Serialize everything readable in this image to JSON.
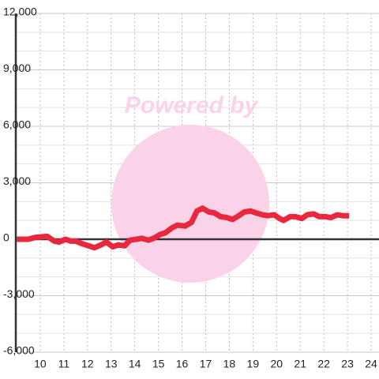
{
  "chart_data": {
    "type": "line",
    "watermark": "Powered by",
    "xlim": [
      8.967,
      24.333
    ],
    "xticks": [
      10,
      11,
      12,
      13,
      14,
      15,
      16,
      17,
      18,
      19,
      20,
      21,
      22,
      23,
      24
    ],
    "ylim": [
      -6000,
      12000
    ],
    "yticks": [
      {
        "value": -6000,
        "label": "-6,000"
      },
      {
        "value": -3000,
        "label": "-3,000"
      },
      0,
      {
        "value": 3000,
        "label": "3,000"
      },
      {
        "value": 6000,
        "label": "6,000"
      },
      {
        "value": 9000,
        "label": "9,000"
      },
      {
        "value": 12000,
        "label": "12,000"
      }
    ],
    "yminorticks": [
      -5000,
      -4000,
      -2000,
      -1000,
      1000,
      2000,
      4000,
      5000,
      7000,
      8000,
      10000,
      11000
    ],
    "grid": true,
    "series": [
      {
        "color": "#e8283c",
        "x": [
          9.0,
          9.5,
          9.8,
          10.3,
          10.6,
          10.8,
          11.07,
          11.3,
          11.5,
          11.8,
          12.3,
          12.57,
          12.8,
          13.07,
          13.3,
          13.57,
          13.8,
          14.07,
          14.3,
          14.57,
          14.8,
          15.07,
          15.3,
          15.57,
          15.8,
          16.13,
          16.4,
          16.63,
          16.87,
          17.13,
          17.37,
          17.63,
          17.9,
          18.13,
          18.4,
          18.63,
          18.9,
          19.13,
          19.4,
          19.63,
          19.9,
          20.13,
          20.3,
          20.57,
          20.8,
          21.07,
          21.3,
          21.57,
          21.8,
          22.07,
          22.3,
          22.57,
          22.8,
          23.07
        ],
        "values": [
          0,
          0,
          100,
          150,
          -100,
          -150,
          0,
          -100,
          -100,
          -250,
          -450,
          -300,
          -150,
          -400,
          -300,
          -350,
          -50,
          0,
          50,
          -50,
          50,
          250,
          350,
          600,
          750,
          700,
          900,
          1500,
          1650,
          1450,
          1400,
          1200,
          1150,
          1050,
          1250,
          1450,
          1500,
          1400,
          1300,
          1250,
          1300,
          1100,
          1000,
          1200,
          1200,
          1100,
          1300,
          1350,
          1200,
          1200,
          1150,
          1300,
          1250,
          1250
        ]
      }
    ]
  }
}
